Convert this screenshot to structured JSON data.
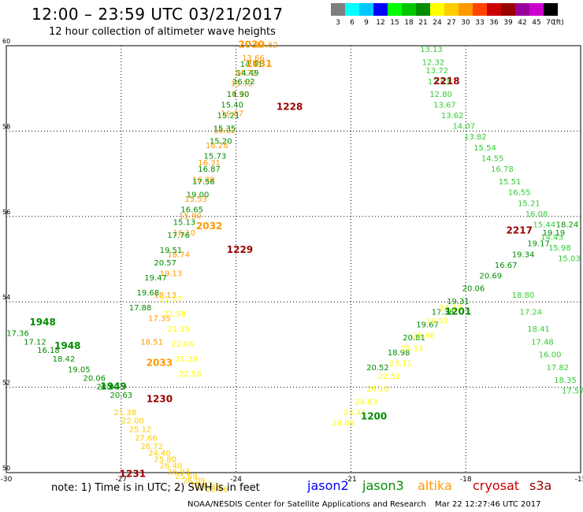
{
  "header": {
    "title": "12:00 – 23:59 UTC 03/21/2017",
    "subtitle": "12 hour collection of altimeter wave heights"
  },
  "color_scale": {
    "unit": "(ft)",
    "bins": [
      {
        "label": "3",
        "color": "#808080"
      },
      {
        "label": "6",
        "color": "#00ffff"
      },
      {
        "label": "9",
        "color": "#00c8ff"
      },
      {
        "label": "12",
        "color": "#0000ff"
      },
      {
        "label": "15",
        "color": "#00ff00"
      },
      {
        "label": "18",
        "color": "#00c800"
      },
      {
        "label": "21",
        "color": "#008c00"
      },
      {
        "label": "24",
        "color": "#ffff00"
      },
      {
        "label": "27",
        "color": "#ffcc00"
      },
      {
        "label": "30",
        "color": "#ff9900"
      },
      {
        "label": "33",
        "color": "#ff4400"
      },
      {
        "label": "36",
        "color": "#cc0000"
      },
      {
        "label": "39",
        "color": "#990000"
      },
      {
        "label": "42",
        "color": "#990099"
      },
      {
        "label": "45",
        "color": "#cc00cc"
      },
      {
        "label": "70",
        "color": "#000000"
      }
    ]
  },
  "chart_data": {
    "type": "scatter",
    "xlim": [
      -30,
      -15
    ],
    "ylim": [
      50,
      60
    ],
    "x_ticks": [
      "-30",
      "-27",
      "-24",
      "-21",
      "-18",
      "-15"
    ],
    "y_ticks": [
      "50",
      "52",
      "54",
      "56",
      "58",
      "60"
    ],
    "grid": true,
    "time_labels": [
      {
        "text": "2030",
        "lon": -23.6,
        "lat": 59.95,
        "color": "#ff9900"
      },
      {
        "text": "2031",
        "lon": -23.4,
        "lat": 59.5,
        "color": "#ff9900"
      },
      {
        "text": "1228",
        "lon": -22.6,
        "lat": 58.5,
        "color": "#990000"
      },
      {
        "text": "2032",
        "lon": -24.7,
        "lat": 55.7,
        "color": "#ff9900"
      },
      {
        "text": "1229",
        "lon": -23.9,
        "lat": 55.15,
        "color": "#990000"
      },
      {
        "text": "2033",
        "lon": -26.0,
        "lat": 52.5,
        "color": "#ff9900"
      },
      {
        "text": "1230",
        "lon": -26.0,
        "lat": 51.65,
        "color": "#990000"
      },
      {
        "text": "1231",
        "lon": -26.7,
        "lat": 49.9,
        "color": "#990000"
      },
      {
        "text": "1948",
        "lon": -29.05,
        "lat": 53.45,
        "color": "#008c00"
      },
      {
        "text": "1948",
        "lon": -28.4,
        "lat": 52.9,
        "color": "#008c00"
      },
      {
        "text": "1949",
        "lon": -27.2,
        "lat": 51.95,
        "color": "#008c00"
      },
      {
        "text": "1201",
        "lon": -18.2,
        "lat": 53.7,
        "color": "#008c00"
      },
      {
        "text": "1200",
        "lon": -20.4,
        "lat": 51.25,
        "color": "#008c00"
      },
      {
        "text": "2218",
        "lon": -18.5,
        "lat": 59.1,
        "color": "#990000"
      },
      {
        "text": "2217",
        "lon": -16.6,
        "lat": 55.6,
        "color": "#990000"
      }
    ],
    "series": [
      {
        "name": "altika",
        "color": "#ff9900",
        "lon": [
          -23.2,
          -23.55,
          -23.75,
          -23.85,
          -23.95,
          -24.1,
          -24.3,
          -24.5,
          -24.7,
          -24.85,
          -25.05,
          -25.2,
          -25.35,
          -25.5,
          -25.7,
          -25.85,
          -26.0,
          -26.2
        ],
        "lat": [
          59.95,
          59.65,
          59.3,
          59.05,
          58.8,
          58.35,
          57.95,
          57.6,
          57.2,
          56.8,
          56.35,
          55.95,
          55.55,
          55.05,
          54.6,
          54.1,
          53.55,
          53.0
        ],
        "values": [
          "14.82",
          "13.66",
          "14.72",
          "15.72",
          "15.10",
          "16.87",
          "16.02",
          "16.26",
          "16.31",
          "16.39",
          "15.53",
          "15.90",
          "16.10",
          "18.74",
          "19.13",
          "18.13",
          "17.35",
          "18.51"
        ]
      },
      {
        "name": "jason3",
        "color": "#008c00",
        "lon": [
          -23.6,
          -23.7,
          -23.8,
          -23.95,
          -24.1,
          -24.2,
          -24.3,
          -24.4,
          -24.55,
          -24.7,
          -24.85,
          -25.0,
          -25.15,
          -25.35,
          -25.5,
          -25.7,
          -25.85,
          -26.1,
          -26.3,
          -26.5
        ],
        "lat": [
          59.5,
          59.3,
          59.1,
          58.8,
          58.55,
          58.3,
          58.0,
          57.7,
          57.35,
          57.05,
          56.75,
          56.45,
          56.1,
          55.8,
          55.5,
          55.15,
          54.85,
          54.5,
          54.15,
          53.8
        ],
        "values": [
          "14.41",
          "14.49",
          "16.02",
          "14.90",
          "15.40",
          "15.21",
          "15.35",
          "15.20",
          "15.73",
          "16.87",
          "17.56",
          "19.00",
          "16.65",
          "15.13",
          "17.76",
          "19.51",
          "20.57",
          "19.47",
          "19.68",
          "17.88"
        ]
      },
      {
        "name": "jason3-east",
        "color": "#008c00",
        "lon": [
          -20.3,
          -19.75,
          -19.35,
          -19.0,
          -18.6,
          -18.2,
          -17.8,
          -17.35,
          -16.95,
          -16.5,
          -16.1,
          -15.7,
          -15.35
        ],
        "lat": [
          52.4,
          52.75,
          53.1,
          53.4,
          53.7,
          53.95,
          54.25,
          54.55,
          54.8,
          55.05,
          55.3,
          55.55,
          55.75
        ],
        "values": [
          "20.52",
          "18.98",
          "20.81",
          "19.67",
          "17.38",
          "19.31",
          "20.06",
          "20.69",
          "16.67",
          "19.34",
          "19.17",
          "19.19",
          "18.24"
        ]
      },
      {
        "name": "jason2-northwest",
        "color": "#008c00",
        "lon": [
          -29.7,
          -29.25,
          -28.9,
          -28.5,
          -28.1,
          -27.7,
          -27.35,
          -27.0
        ],
        "lat": [
          53.2,
          53.0,
          52.8,
          52.6,
          52.35,
          52.15,
          51.95,
          51.75
        ],
        "values": [
          "17.36",
          "17.12",
          "16.18",
          "18.42",
          "19.05",
          "20.06",
          "20.80",
          "20.63"
        ]
      },
      {
        "name": "cryosat-east",
        "color": "#33cc33",
        "lon": [
          -18.9,
          -18.85,
          -18.75,
          -18.7,
          -18.65,
          -18.55,
          -18.35,
          -18.05,
          -17.75,
          -17.5,
          -17.3,
          -17.05,
          -16.85,
          -16.6,
          -16.35,
          -16.15,
          -15.95,
          -15.75,
          -15.55,
          -15.3
        ],
        "lat": [
          59.85,
          59.55,
          59.35,
          59.1,
          58.8,
          58.55,
          58.3,
          58.05,
          57.8,
          57.55,
          57.3,
          57.05,
          56.75,
          56.5,
          56.25,
          56.0,
          55.75,
          55.45,
          55.2,
          54.95
        ],
        "values": [
          "13.13",
          "12.32",
          "13.72",
          "12.83",
          "12.80",
          "13.67",
          "13.62",
          "14.07",
          "13.82",
          "15.54",
          "14.55",
          "16.78",
          "15.51",
          "16.55",
          "15.21",
          "16.08",
          "15.44",
          "14.43",
          "15.98",
          "15.03"
        ]
      },
      {
        "name": "cryosat-south",
        "color": "#33cc33",
        "lon": [
          -16.5,
          -16.3,
          -16.1,
          -16.0,
          -15.8,
          -15.6,
          -15.4,
          -15.2
        ],
        "lat": [
          54.1,
          53.7,
          53.3,
          53.0,
          52.7,
          52.4,
          52.1,
          51.85
        ],
        "values": [
          "18.80",
          "17.24",
          "18.41",
          "17.48",
          "16.00",
          "17.82",
          "18.35",
          "17.57"
        ]
      },
      {
        "name": "s3a",
        "color": "#ffcc00",
        "lon": [
          -26.9,
          -26.7,
          -26.5,
          -26.35,
          -26.2,
          -26.0,
          -25.85,
          -25.7,
          -25.5,
          -25.3,
          -25.1,
          -24.9,
          -24.7,
          -24.5
        ],
        "lat": [
          51.35,
          51.15,
          50.95,
          50.75,
          50.55,
          50.4,
          50.25,
          50.1,
          49.95,
          49.85,
          49.75,
          49.65,
          49.6,
          49.55
        ],
        "values": [
          "21.38",
          "22.00",
          "25.12",
          "27.66",
          "26.72",
          "24.40",
          "25.80",
          "26.40",
          "26.93",
          "25.69",
          "26.09",
          "25.47",
          "24.82",
          "25.66"
        ]
      },
      {
        "name": "s3a-northeast",
        "color": "#ffff00",
        "lon": [
          -21.2,
          -20.9,
          -20.6,
          -20.3,
          -20.0,
          -19.7,
          -19.4,
          -19.1,
          -18.75,
          -18.4
        ],
        "lat": [
          51.1,
          51.35,
          51.6,
          51.9,
          52.2,
          52.5,
          52.85,
          53.15,
          53.5,
          53.8
        ],
        "values": [
          "24.69",
          "24.41",
          "24.83",
          "24.16",
          "22.51",
          "23.11",
          "25.12",
          "23.98",
          "24.52",
          "24.10"
        ]
      },
      {
        "name": "s3a-northwest",
        "color": "#ffff00",
        "lon": [
          -25.7,
          -25.6,
          -25.5,
          -25.4,
          -25.3,
          -25.2
        ],
        "lat": [
          54.0,
          53.65,
          53.3,
          52.95,
          52.6,
          52.25
        ],
        "values": [
          "21.57",
          "21.58",
          "21.35",
          "22.04",
          "21.38",
          "22.56"
        ]
      }
    ]
  },
  "footer": {
    "note": "note:  1) Time is in UTC;  2) SWH is in feet",
    "credit": "NOAA/NESDIS Center for Satellite Applications and Research",
    "timestamp": "Mar 22 12:27:46 UTC 2017"
  },
  "legend": [
    {
      "name": "jason2",
      "color": "#0000ff"
    },
    {
      "name": "jason3",
      "color": "#008c00"
    },
    {
      "name": "altika",
      "color": "#ff9900"
    },
    {
      "name": "cryosat",
      "color": "#cc0000"
    },
    {
      "name": "s3a",
      "color": "#990000"
    }
  ]
}
